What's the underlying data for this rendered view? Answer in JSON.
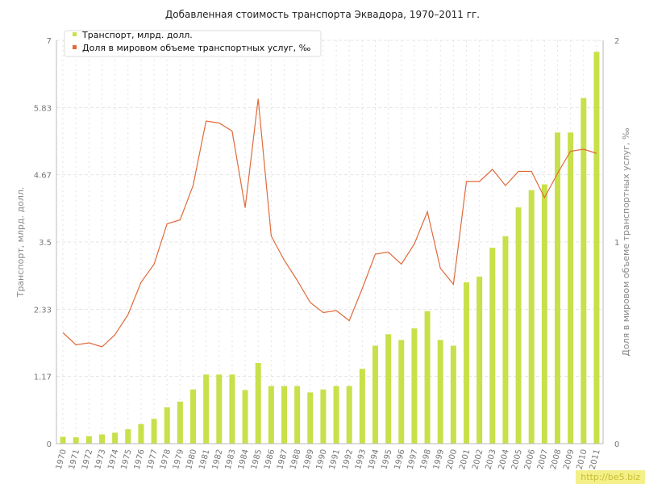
{
  "watermark": "http://be5.biz",
  "colors": {
    "bar": "#c8e04a",
    "line": "#e06a3a",
    "grid": "#e4e4e4",
    "axis": "#bbbbbb"
  },
  "chart_data": {
    "type": "bar+line",
    "title": "Добавленная стоимость транспорта Эквадора, 1970–2011 гг.",
    "ylabel_left": "Транспорт, млрд. долл.",
    "ylabel_right": "Доля в мировом объеме транспортных услуг, ‰",
    "left_ticks": [
      "0",
      "1.17",
      "2.33",
      "3.5",
      "4.67",
      "5.83",
      "7"
    ],
    "right_ticks": [
      "0",
      "1",
      "2"
    ],
    "ylim_left": [
      0,
      7
    ],
    "ylim_right": [
      0,
      2
    ],
    "legend_position": "top-left",
    "categories": [
      "1970",
      "1971",
      "1972",
      "1973",
      "1974",
      "1975",
      "1976",
      "1977",
      "1978",
      "1979",
      "1980",
      "1981",
      "1982",
      "1983",
      "1984",
      "1985",
      "1986",
      "1987",
      "1988",
      "1989",
      "1990",
      "1991",
      "1992",
      "1993",
      "1994",
      "1995",
      "1996",
      "1997",
      "1998",
      "1999",
      "2000",
      "2001",
      "2002",
      "2003",
      "2004",
      "2005",
      "2006",
      "2007",
      "2008",
      "2009",
      "2010",
      "2011"
    ],
    "series": [
      {
        "name": "Транспорт, млрд. долл.",
        "type": "bar",
        "axis": "left",
        "values": [
          0.12,
          0.11,
          0.13,
          0.16,
          0.19,
          0.25,
          0.34,
          0.43,
          0.63,
          0.73,
          0.94,
          1.2,
          1.2,
          1.2,
          0.93,
          1.4,
          1.0,
          1.0,
          1.0,
          0.89,
          0.94,
          1.0,
          1.0,
          1.3,
          1.7,
          1.9,
          1.8,
          2.0,
          2.3,
          1.8,
          1.7,
          2.8,
          2.9,
          3.4,
          3.6,
          4.1,
          4.4,
          4.5,
          5.4,
          5.4,
          6.0,
          6.8
        ]
      },
      {
        "name": "Доля в мировом объеме транспортных услуг, ‰",
        "type": "line",
        "axis": "right",
        "values": [
          0.55,
          0.49,
          0.5,
          0.48,
          0.54,
          0.64,
          0.8,
          0.89,
          1.09,
          1.11,
          1.28,
          1.6,
          1.59,
          1.55,
          1.17,
          1.71,
          1.03,
          0.91,
          0.81,
          0.7,
          0.65,
          0.66,
          0.61,
          0.77,
          0.94,
          0.95,
          0.89,
          0.99,
          1.15,
          0.87,
          0.79,
          1.3,
          1.3,
          1.36,
          1.28,
          1.35,
          1.35,
          1.22,
          1.34,
          1.45,
          1.46,
          1.44
        ]
      }
    ]
  }
}
